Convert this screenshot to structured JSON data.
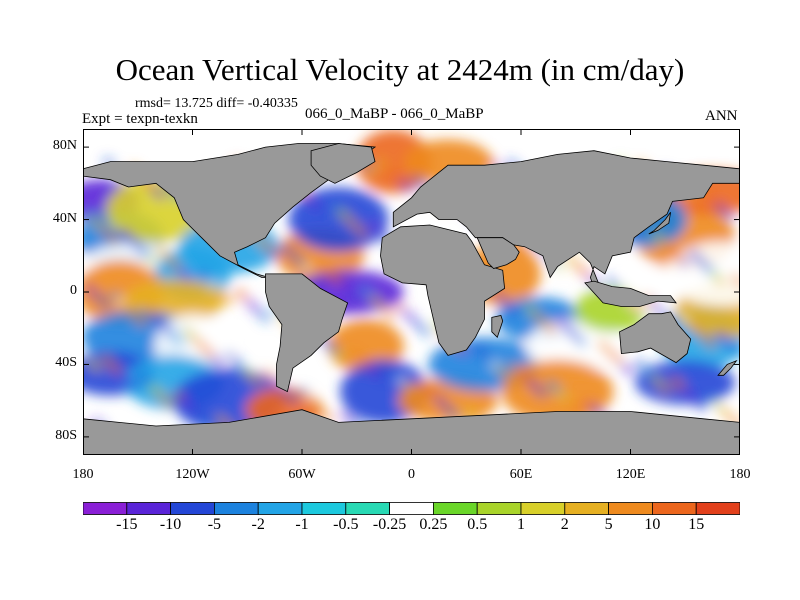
{
  "title": "Ocean Vertical Velocity at 2424m (in cm/day)",
  "stats": "rmsd= 13.725 diff= -0.40335",
  "expt": "Expt = texpn-texkn",
  "center_label": "066_0_MaBP - 066_0_MaBP",
  "season": "ANN",
  "y_ticks": [
    "80N",
    "40N",
    "0",
    "40S",
    "80S"
  ],
  "x_ticks": [
    "180",
    "120W",
    "60W",
    "0",
    "60E",
    "120E",
    "180"
  ],
  "colors": {
    "land": "#999999",
    "nodata": "#ffffff"
  },
  "colorbar": {
    "colors": [
      "#8a1fd6",
      "#5a24d8",
      "#2346d6",
      "#1c82de",
      "#22a4e6",
      "#1cc9de",
      "#28d9b4",
      "#ffffff",
      "#6ad629",
      "#a9d42a",
      "#d8d02a",
      "#e6b022",
      "#ee8a1e",
      "#ec661d",
      "#e2401b"
    ],
    "labels": [
      "-15",
      "-10",
      "-5",
      "-2",
      "-1",
      "-0.5",
      "-0.25",
      "0.25",
      "0.5",
      "1",
      "2",
      "5",
      "10",
      "15"
    ]
  },
  "map_blobs": [
    {
      "lon": -170,
      "lat": 50,
      "v": -12
    },
    {
      "lon": -160,
      "lat": 30,
      "v": -3
    },
    {
      "lon": -140,
      "lat": 45,
      "v": 2
    },
    {
      "lon": -150,
      "lat": 15,
      "v": 0
    },
    {
      "lon": -120,
      "lat": 10,
      "v": -1
    },
    {
      "lon": -160,
      "lat": 0,
      "v": 8
    },
    {
      "lon": -130,
      "lat": -5,
      "v": 5
    },
    {
      "lon": -150,
      "lat": -25,
      "v": -2
    },
    {
      "lon": -120,
      "lat": -30,
      "v": 0
    },
    {
      "lon": -165,
      "lat": -45,
      "v": -8
    },
    {
      "lon": -130,
      "lat": -50,
      "v": -1
    },
    {
      "lon": -100,
      "lat": -60,
      "v": -6
    },
    {
      "lon": -70,
      "lat": -65,
      "v": 12
    },
    {
      "lon": -50,
      "lat": 20,
      "v": 6
    },
    {
      "lon": -40,
      "lat": 40,
      "v": -5
    },
    {
      "lon": -35,
      "lat": 0,
      "v": -10
    },
    {
      "lon": -25,
      "lat": -30,
      "v": 9
    },
    {
      "lon": -15,
      "lat": -55,
      "v": -7
    },
    {
      "lon": 20,
      "lat": -60,
      "v": 10
    },
    {
      "lon": 40,
      "lat": -40,
      "v": -4
    },
    {
      "lon": 50,
      "lat": 10,
      "v": 6
    },
    {
      "lon": 70,
      "lat": -15,
      "v": -3
    },
    {
      "lon": 90,
      "lat": -30,
      "v": 0
    },
    {
      "lon": 80,
      "lat": -55,
      "v": 7
    },
    {
      "lon": 110,
      "lat": -10,
      "v": 1
    },
    {
      "lon": 140,
      "lat": 0,
      "v": 0
    },
    {
      "lon": 150,
      "lat": 30,
      "v": 8
    },
    {
      "lon": 165,
      "lat": 55,
      "v": 12
    },
    {
      "lon": 130,
      "lat": 40,
      "v": -2
    },
    {
      "lon": 160,
      "lat": -25,
      "v": -1
    },
    {
      "lon": 150,
      "lat": -50,
      "v": -9
    },
    {
      "lon": 175,
      "lat": -10,
      "v": 4
    },
    {
      "lon": -10,
      "lat": 72,
      "v": 11
    },
    {
      "lon": 20,
      "lat": 72,
      "v": 6
    },
    {
      "lon": -100,
      "lat": 25,
      "v": -1
    },
    {
      "lon": 170,
      "lat": 10,
      "v": 0
    }
  ],
  "land_polys": [
    {
      "name": "north-america",
      "pts": [
        [
          -180,
          68
        ],
        [
          -165,
          72
        ],
        [
          -140,
          72
        ],
        [
          -120,
          72
        ],
        [
          -95,
          76
        ],
        [
          -80,
          80
        ],
        [
          -62,
          82
        ],
        [
          -40,
          82
        ],
        [
          -20,
          80
        ],
        [
          -40,
          66
        ],
        [
          -55,
          55
        ],
        [
          -65,
          47
        ],
        [
          -75,
          38
        ],
        [
          -80,
          30
        ],
        [
          -90,
          25
        ],
        [
          -97,
          22
        ],
        [
          -95,
          15
        ],
        [
          -85,
          10
        ],
        [
          -78,
          8
        ],
        [
          -82,
          8
        ],
        [
          -92,
          13
        ],
        [
          -105,
          20
        ],
        [
          -115,
          30
        ],
        [
          -125,
          40
        ],
        [
          -130,
          52
        ],
        [
          -140,
          60
        ],
        [
          -155,
          58
        ],
        [
          -165,
          62
        ],
        [
          -180,
          64
        ]
      ]
    },
    {
      "name": "south-america",
      "pts": [
        [
          -80,
          10
        ],
        [
          -60,
          10
        ],
        [
          -50,
          2
        ],
        [
          -35,
          -6
        ],
        [
          -38,
          -15
        ],
        [
          -40,
          -22
        ],
        [
          -48,
          -28
        ],
        [
          -55,
          -35
        ],
        [
          -65,
          -42
        ],
        [
          -68,
          -55
        ],
        [
          -74,
          -52
        ],
        [
          -74,
          -40
        ],
        [
          -72,
          -30
        ],
        [
          -71,
          -18
        ],
        [
          -78,
          -8
        ],
        [
          -80,
          0
        ]
      ]
    },
    {
      "name": "africa",
      "pts": [
        [
          -17,
          20
        ],
        [
          -16,
          30
        ],
        [
          -6,
          36
        ],
        [
          10,
          37
        ],
        [
          30,
          32
        ],
        [
          33,
          28
        ],
        [
          40,
          15
        ],
        [
          50,
          12
        ],
        [
          51,
          2
        ],
        [
          40,
          -5
        ],
        [
          40,
          -15
        ],
        [
          35,
          -25
        ],
        [
          30,
          -32
        ],
        [
          20,
          -35
        ],
        [
          15,
          -28
        ],
        [
          12,
          -15
        ],
        [
          9,
          -2
        ],
        [
          8,
          4
        ],
        [
          -5,
          5
        ],
        [
          -15,
          10
        ]
      ]
    },
    {
      "name": "eurasia",
      "pts": [
        [
          -10,
          36
        ],
        [
          -10,
          44
        ],
        [
          -5,
          48
        ],
        [
          0,
          52
        ],
        [
          5,
          58
        ],
        [
          10,
          62
        ],
        [
          20,
          70
        ],
        [
          40,
          70
        ],
        [
          60,
          72
        ],
        [
          80,
          76
        ],
        [
          100,
          78
        ],
        [
          120,
          74
        ],
        [
          140,
          72
        ],
        [
          160,
          70
        ],
        [
          180,
          68
        ],
        [
          180,
          60
        ],
        [
          165,
          60
        ],
        [
          160,
          52
        ],
        [
          143,
          50
        ],
        [
          140,
          43
        ],
        [
          130,
          36
        ],
        [
          122,
          30
        ],
        [
          120,
          22
        ],
        [
          110,
          20
        ],
        [
          106,
          10
        ],
        [
          100,
          14
        ],
        [
          98,
          8
        ],
        [
          100,
          2
        ],
        [
          104,
          1
        ],
        [
          98,
          16
        ],
        [
          92,
          22
        ],
        [
          80,
          14
        ],
        [
          76,
          8
        ],
        [
          72,
          20
        ],
        [
          62,
          25
        ],
        [
          56,
          26
        ],
        [
          50,
          30
        ],
        [
          48,
          30
        ],
        [
          35,
          30
        ],
        [
          30,
          36
        ],
        [
          25,
          40
        ],
        [
          15,
          40
        ],
        [
          10,
          44
        ],
        [
          3,
          43
        ]
      ]
    },
    {
      "name": "arabia",
      "pts": [
        [
          36,
          30
        ],
        [
          42,
          16
        ],
        [
          45,
          13
        ],
        [
          52,
          15
        ],
        [
          57,
          18
        ],
        [
          59,
          22
        ],
        [
          56,
          26
        ],
        [
          50,
          30
        ],
        [
          48,
          30
        ]
      ]
    },
    {
      "name": "australia",
      "pts": [
        [
          114,
          -22
        ],
        [
          122,
          -18
        ],
        [
          130,
          -12
        ],
        [
          137,
          -12
        ],
        [
          142,
          -11
        ],
        [
          146,
          -18
        ],
        [
          153,
          -26
        ],
        [
          151,
          -34
        ],
        [
          145,
          -39
        ],
        [
          138,
          -35
        ],
        [
          131,
          -31
        ],
        [
          124,
          -33
        ],
        [
          115,
          -34
        ]
      ]
    },
    {
      "name": "antarctica",
      "pts": [
        [
          -180,
          -70
        ],
        [
          -140,
          -74
        ],
        [
          -100,
          -72
        ],
        [
          -60,
          -65
        ],
        [
          -40,
          -72
        ],
        [
          0,
          -70
        ],
        [
          40,
          -68
        ],
        [
          80,
          -66
        ],
        [
          120,
          -66
        ],
        [
          160,
          -70
        ],
        [
          180,
          -72
        ],
        [
          180,
          -90
        ],
        [
          -180,
          -90
        ]
      ]
    },
    {
      "name": "greenland",
      "pts": [
        [
          -55,
          78
        ],
        [
          -40,
          82
        ],
        [
          -22,
          80
        ],
        [
          -20,
          72
        ],
        [
          -30,
          66
        ],
        [
          -42,
          60
        ],
        [
          -50,
          64
        ],
        [
          -55,
          70
        ]
      ]
    },
    {
      "name": "madagascar",
      "pts": [
        [
          44,
          -14
        ],
        [
          49,
          -13
        ],
        [
          50,
          -16
        ],
        [
          47,
          -25
        ],
        [
          44,
          -22
        ]
      ]
    },
    {
      "name": "indonesia",
      "pts": [
        [
          95,
          5
        ],
        [
          105,
          -6
        ],
        [
          115,
          -8
        ],
        [
          125,
          -8
        ],
        [
          135,
          -5
        ],
        [
          145,
          -6
        ],
        [
          142,
          -2
        ],
        [
          130,
          -2
        ],
        [
          120,
          2
        ],
        [
          110,
          3
        ],
        [
          100,
          6
        ]
      ]
    },
    {
      "name": "japan",
      "pts": [
        [
          130,
          32
        ],
        [
          135,
          34
        ],
        [
          141,
          38
        ],
        [
          142,
          44
        ],
        [
          139,
          40
        ],
        [
          133,
          34
        ]
      ]
    },
    {
      "name": "new-zealand",
      "pts": [
        [
          168,
          -46
        ],
        [
          173,
          -40
        ],
        [
          178,
          -38
        ],
        [
          175,
          -42
        ],
        [
          171,
          -46
        ]
      ]
    }
  ]
}
